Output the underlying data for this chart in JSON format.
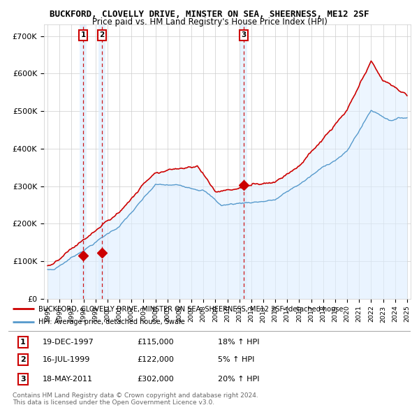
{
  "title": "BUCKFORD, CLOVELLY DRIVE, MINSTER ON SEA, SHEERNESS, ME12 2SF",
  "subtitle": "Price paid vs. HM Land Registry's House Price Index (HPI)",
  "ylabel_ticks": [
    "£0",
    "£100K",
    "£200K",
    "£300K",
    "£400K",
    "£500K",
    "£600K",
    "£700K"
  ],
  "ytick_values": [
    0,
    100000,
    200000,
    300000,
    400000,
    500000,
    600000,
    700000
  ],
  "ylim": [
    0,
    730000
  ],
  "xlim_start": 1994.7,
  "xlim_end": 2025.3,
  "sale_dates": [
    1997.97,
    1999.54,
    2011.38
  ],
  "sale_prices": [
    115000,
    122000,
    302000
  ],
  "sale_labels": [
    "1",
    "2",
    "3"
  ],
  "legend_line1": "BUCKFORD, CLOVELLY DRIVE, MINSTER ON SEA, SHEERNESS, ME12 2SF (detached house",
  "legend_line2": "HPI: Average price, detached house, Swale",
  "table_data": [
    {
      "num": "1",
      "date": "19-DEC-1997",
      "price": "£115,000",
      "change": "18% ↑ HPI"
    },
    {
      "num": "2",
      "date": "16-JUL-1999",
      "price": "£122,000",
      "change": "5% ↑ HPI"
    },
    {
      "num": "3",
      "date": "18-MAY-2011",
      "price": "£302,000",
      "change": "20% ↑ HPI"
    }
  ],
  "footer": "Contains HM Land Registry data © Crown copyright and database right 2024.\nThis data is licensed under the Open Government Licence v3.0.",
  "price_line_color": "#cc0000",
  "hpi_line_color": "#5599cc",
  "hpi_fill_color": "#ddeeff",
  "vline_color": "#cc0000",
  "vfill_color": "#ddeeff",
  "background_color": "#ffffff",
  "grid_color": "#cccccc",
  "xtick_years": [
    1995,
    1996,
    1997,
    1998,
    1999,
    2000,
    2001,
    2002,
    2003,
    2004,
    2005,
    2006,
    2007,
    2008,
    2009,
    2010,
    2011,
    2012,
    2013,
    2014,
    2015,
    2016,
    2017,
    2018,
    2019,
    2020,
    2021,
    2022,
    2023,
    2024,
    2025
  ]
}
